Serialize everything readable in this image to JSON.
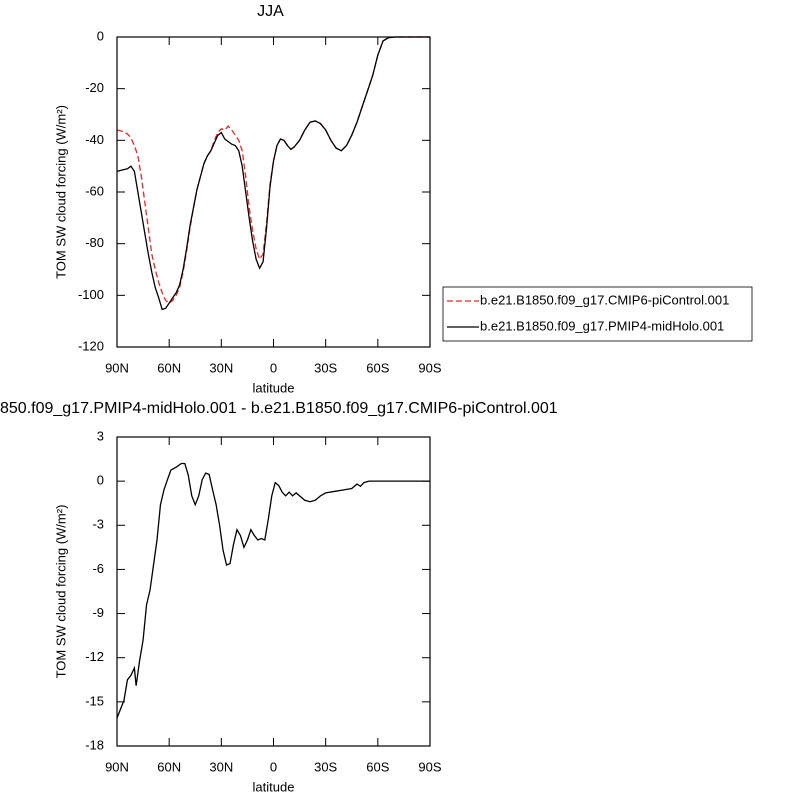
{
  "chart_data": [
    {
      "type": "line",
      "title": "JJA",
      "xlabel": "latitude",
      "ylabel": "TOM SW cloud forcing (W/m²)",
      "xlim": [
        90,
        -90
      ],
      "ylim": [
        -120,
        0
      ],
      "xticks": [
        {
          "value": 90,
          "label": "90N"
        },
        {
          "value": 60,
          "label": "60N"
        },
        {
          "value": 30,
          "label": "30N"
        },
        0,
        {
          "value": -30,
          "label": "30S"
        },
        {
          "value": -60,
          "label": "60S"
        },
        {
          "value": -90,
          "label": "90S"
        }
      ],
      "yticks": [
        -120,
        -100,
        -80,
        -60,
        -40,
        -20,
        0
      ],
      "legend": "right",
      "x": [
        90,
        87,
        84,
        82,
        80,
        78,
        76,
        74,
        72,
        70,
        68,
        66,
        64,
        62,
        60,
        58,
        56,
        54,
        52,
        50,
        48,
        46,
        44,
        42,
        40,
        38,
        36,
        34,
        32,
        30,
        28,
        26,
        24,
        22,
        20,
        18,
        16,
        14,
        12,
        10,
        8,
        6,
        4,
        2,
        0,
        -2,
        -4,
        -6,
        -8,
        -10,
        -12,
        -15,
        -18,
        -21,
        -24,
        -27,
        -30,
        -33,
        -36,
        -39,
        -42,
        -45,
        -48,
        -51,
        -54,
        -57,
        -60,
        -63,
        -66,
        -70,
        -75,
        -80,
        -85,
        -90
      ],
      "series": [
        {
          "name": "b.e21.B1850.f09_g17.CMIP6-piControl.001",
          "color": "#e8282b",
          "style": "dashed",
          "values": [
            -36,
            -36.5,
            -37.5,
            -39,
            -42,
            -46,
            -54,
            -64,
            -74,
            -84,
            -90,
            -95,
            -99,
            -102,
            -103,
            -102,
            -100,
            -97,
            -91,
            -83,
            -74,
            -66,
            -59,
            -54,
            -49,
            -46,
            -44,
            -40,
            -37,
            -35.5,
            -36,
            -34.5,
            -36,
            -38,
            -40,
            -44,
            -54,
            -66,
            -75,
            -82,
            -86,
            -84,
            -72,
            -57,
            -48,
            -42,
            -39.5,
            -40,
            -42,
            -43.5,
            -42.5,
            -40,
            -36,
            -33,
            -32.5,
            -33.5,
            -36,
            -40,
            -43,
            -44,
            -42,
            -38,
            -33,
            -27,
            -21,
            -15,
            -7,
            -1.5,
            -0.3,
            0,
            0,
            0,
            0,
            0
          ]
        },
        {
          "name": "b.e21.B1850.f09_g17.PMIP4-midHolo.001",
          "color": "#000000",
          "style": "solid",
          "values": [
            -52,
            -51.5,
            -51,
            -50,
            -52,
            -60,
            -68,
            -76,
            -84,
            -91,
            -97,
            -101,
            -105.5,
            -105,
            -103,
            -101,
            -99,
            -96,
            -90,
            -82,
            -73,
            -66,
            -59,
            -54,
            -49,
            -46,
            -44,
            -41,
            -38,
            -37,
            -39.5,
            -40.5,
            -41.5,
            -42,
            -44,
            -50,
            -60,
            -70,
            -79,
            -86,
            -89.5,
            -87,
            -74,
            -58,
            -48,
            -42,
            -39.5,
            -40,
            -42,
            -43.5,
            -42.5,
            -40,
            -36,
            -33,
            -32.5,
            -33.5,
            -36,
            -40,
            -43,
            -44,
            -42,
            -38,
            -33,
            -27,
            -21,
            -15,
            -7,
            -1.5,
            -0.3,
            0,
            0,
            0,
            0,
            0
          ]
        }
      ]
    },
    {
      "type": "line",
      "title": "850.f09_g17.PMIP4-midHolo.001 - b.e21.B1850.f09_g17.CMIP6-piControl.001",
      "xlabel": "latitude",
      "ylabel": "TOM SW cloud forcing (W/m²)",
      "xlim": [
        90,
        -90
      ],
      "ylim": [
        -18,
        3
      ],
      "xticks": [
        {
          "value": 90,
          "label": "90N"
        },
        {
          "value": 60,
          "label": "60N"
        },
        {
          "value": 30,
          "label": "30N"
        },
        0,
        {
          "value": -30,
          "label": "30S"
        },
        {
          "value": -60,
          "label": "60S"
        },
        {
          "value": -90,
          "label": "90S"
        }
      ],
      "yticks": [
        -18,
        -15,
        -12,
        -9,
        -6,
        -3,
        0,
        3
      ],
      "x": [
        90,
        86,
        84,
        82,
        80,
        79,
        77,
        75,
        73,
        71,
        69,
        67,
        65,
        63,
        61,
        59,
        56,
        53,
        51,
        49,
        47,
        45,
        43,
        41,
        39,
        37,
        35,
        33,
        31,
        29,
        27,
        25,
        23,
        21,
        19,
        17,
        15,
        13,
        11,
        9,
        7,
        5,
        3,
        1,
        -1,
        -3,
        -5,
        -7,
        -9,
        -11,
        -13,
        -15,
        -18,
        -21,
        -24,
        -27,
        -30,
        -35,
        -40,
        -45,
        -48,
        -50,
        -52,
        -55,
        -60,
        -70,
        -90
      ],
      "series": [
        {
          "color": "#000000",
          "style": "solid",
          "values": [
            -16.1,
            -14.9,
            -13.5,
            -13.2,
            -12.7,
            -13.9,
            -12.2,
            -10.8,
            -8.4,
            -7.4,
            -5.7,
            -4,
            -1.6,
            -0.6,
            0.1,
            0.75,
            0.95,
            1.2,
            1.2,
            0.4,
            -1,
            -1.6,
            -1,
            0.1,
            0.55,
            0.45,
            -0.6,
            -1.6,
            -3,
            -4.7,
            -5.7,
            -5.6,
            -4.3,
            -3.3,
            -3.7,
            -4.5,
            -4,
            -3.3,
            -3.7,
            -4,
            -3.9,
            -4,
            -2.6,
            -1,
            -0.1,
            -0.3,
            -0.75,
            -1,
            -0.75,
            -1,
            -0.8,
            -1,
            -1.3,
            -1.4,
            -1.3,
            -1,
            -0.8,
            -0.7,
            -0.6,
            -0.5,
            -0.2,
            -0.35,
            -0.1,
            0,
            0,
            0,
            0
          ]
        }
      ]
    }
  ]
}
